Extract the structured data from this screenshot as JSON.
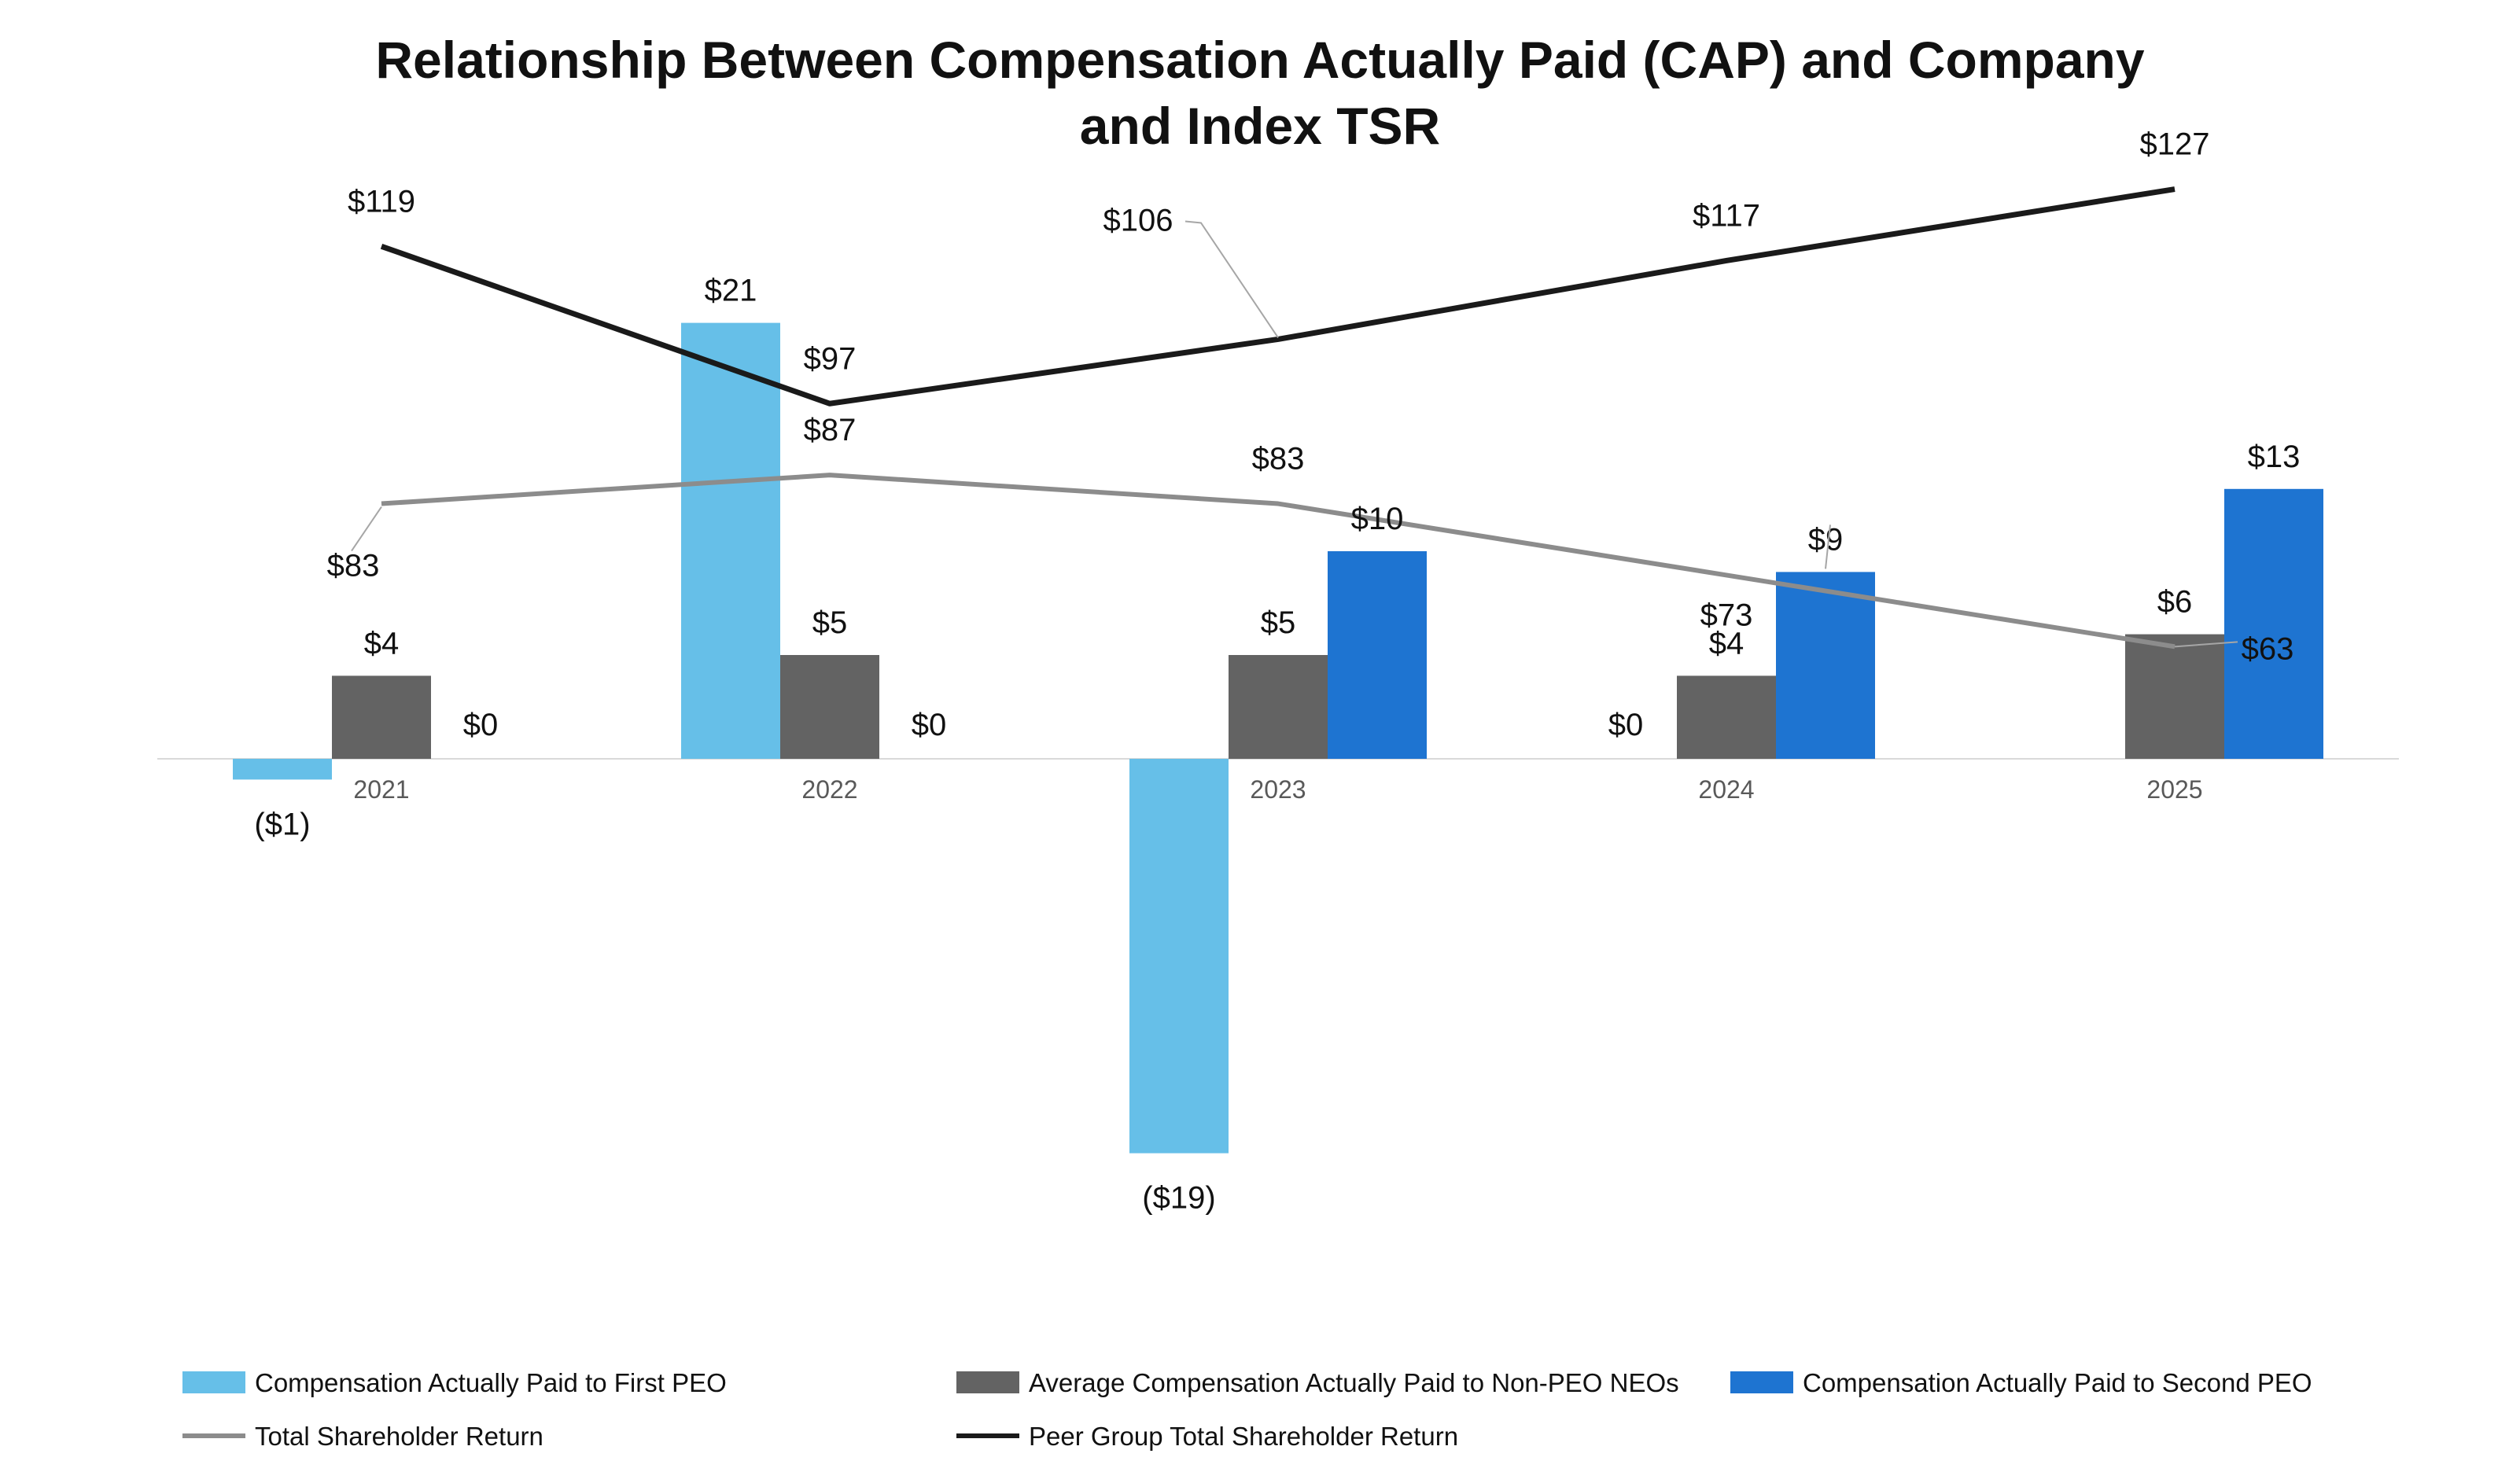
{
  "chart_data": {
    "type": "bar",
    "title_line1": "Relationship Between Compensation Actually Paid (CAP) and Company",
    "title_line2": "and Index TSR",
    "categories": [
      "2021",
      "2022",
      "2023",
      "2024",
      "2025"
    ],
    "ylim_left": [
      -10,
      5
    ],
    "ylim_right": [
      0,
      140
    ],
    "grid": false,
    "legend_position": "bottom",
    "bar_series": [
      {
        "name": "Compensation Actually Paid to First PEO",
        "color": "#66BFE8",
        "values": [
          -1,
          21,
          -19,
          null,
          null
        ],
        "labels": [
          "($1)",
          "$21",
          "($19)",
          "",
          ""
        ]
      },
      {
        "name": "Average Compensation Actually Paid to Non-PEO NEOs",
        "color": "#636363",
        "values": [
          4,
          5,
          5,
          4,
          6
        ],
        "labels": [
          "$4",
          "$5",
          "$5",
          "$4",
          "$6"
        ]
      },
      {
        "name": "Compensation Actually Paid to Second PEO",
        "color": "#1E74D1",
        "values": [
          0,
          0,
          10,
          9,
          13
        ],
        "labels": [
          "$0",
          "$0",
          "$10",
          "$9",
          "$13"
        ]
      }
    ],
    "line_series": [
      {
        "name": "Total Shareholder Return",
        "color": "#8C8C8C",
        "values": [
          83,
          87,
          83,
          73,
          63
        ],
        "labels": [
          "$83",
          "$87",
          "$83",
          "$73",
          "$63"
        ]
      },
      {
        "name": "Peer Group Total Shareholder Return",
        "color": "#1A1A1A",
        "values": [
          119,
          97,
          106,
          117,
          127
        ],
        "labels": [
          "$119",
          "$97",
          "$106",
          "$117",
          "$127"
        ]
      }
    ],
    "extra_labels": [
      "$0"
    ]
  }
}
